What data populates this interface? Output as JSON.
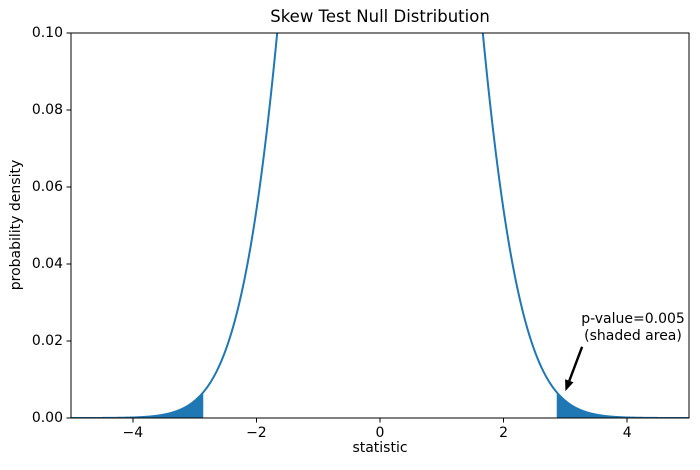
{
  "chart_data": {
    "type": "area",
    "title": "Skew Test Null Distribution",
    "xlabel": "statistic",
    "ylabel": "probability density",
    "xlim": [
      -5,
      5
    ],
    "ylim": [
      0,
      0.1
    ],
    "grid": false,
    "legend": "none",
    "axis_color": "#000000",
    "background_color": "#ffffff",
    "x_ticks": [
      {
        "value": -4,
        "label": "−4"
      },
      {
        "value": -2,
        "label": "−2"
      },
      {
        "value": 0,
        "label": "0"
      },
      {
        "value": 2,
        "label": "2"
      },
      {
        "value": 4,
        "label": "4"
      }
    ],
    "y_ticks": [
      {
        "value": 0.0,
        "label": "0.00"
      },
      {
        "value": 0.02,
        "label": "0.02"
      },
      {
        "value": 0.04,
        "label": "0.04"
      },
      {
        "value": 0.06,
        "label": "0.06"
      },
      {
        "value": 0.08,
        "label": "0.08"
      },
      {
        "value": 0.1,
        "label": "0.10"
      }
    ],
    "curve": {
      "distribution": "standard-normal-pdf",
      "mean": 0,
      "sd": 1,
      "color": "#1f77b4",
      "line_width": 2,
      "peak_clipped_above_ylim": true,
      "crosses_top_at": [
        -1.66,
        1.66
      ]
    },
    "shaded_tails": {
      "critical_value": 2.86,
      "regions": [
        [
          -5,
          -2.86
        ],
        [
          2.86,
          5
        ]
      ],
      "fill_color": "#1f77b4",
      "tail_probability": "0.005"
    },
    "annotation": {
      "line1": "p-value=0.005",
      "line2": "(shaded area)",
      "arrow_color": "#000000",
      "arrow_tail": {
        "x": 3.27,
        "y": 0.0185
      },
      "arrow_tip": {
        "x": 3.0,
        "y": 0.007
      }
    }
  }
}
